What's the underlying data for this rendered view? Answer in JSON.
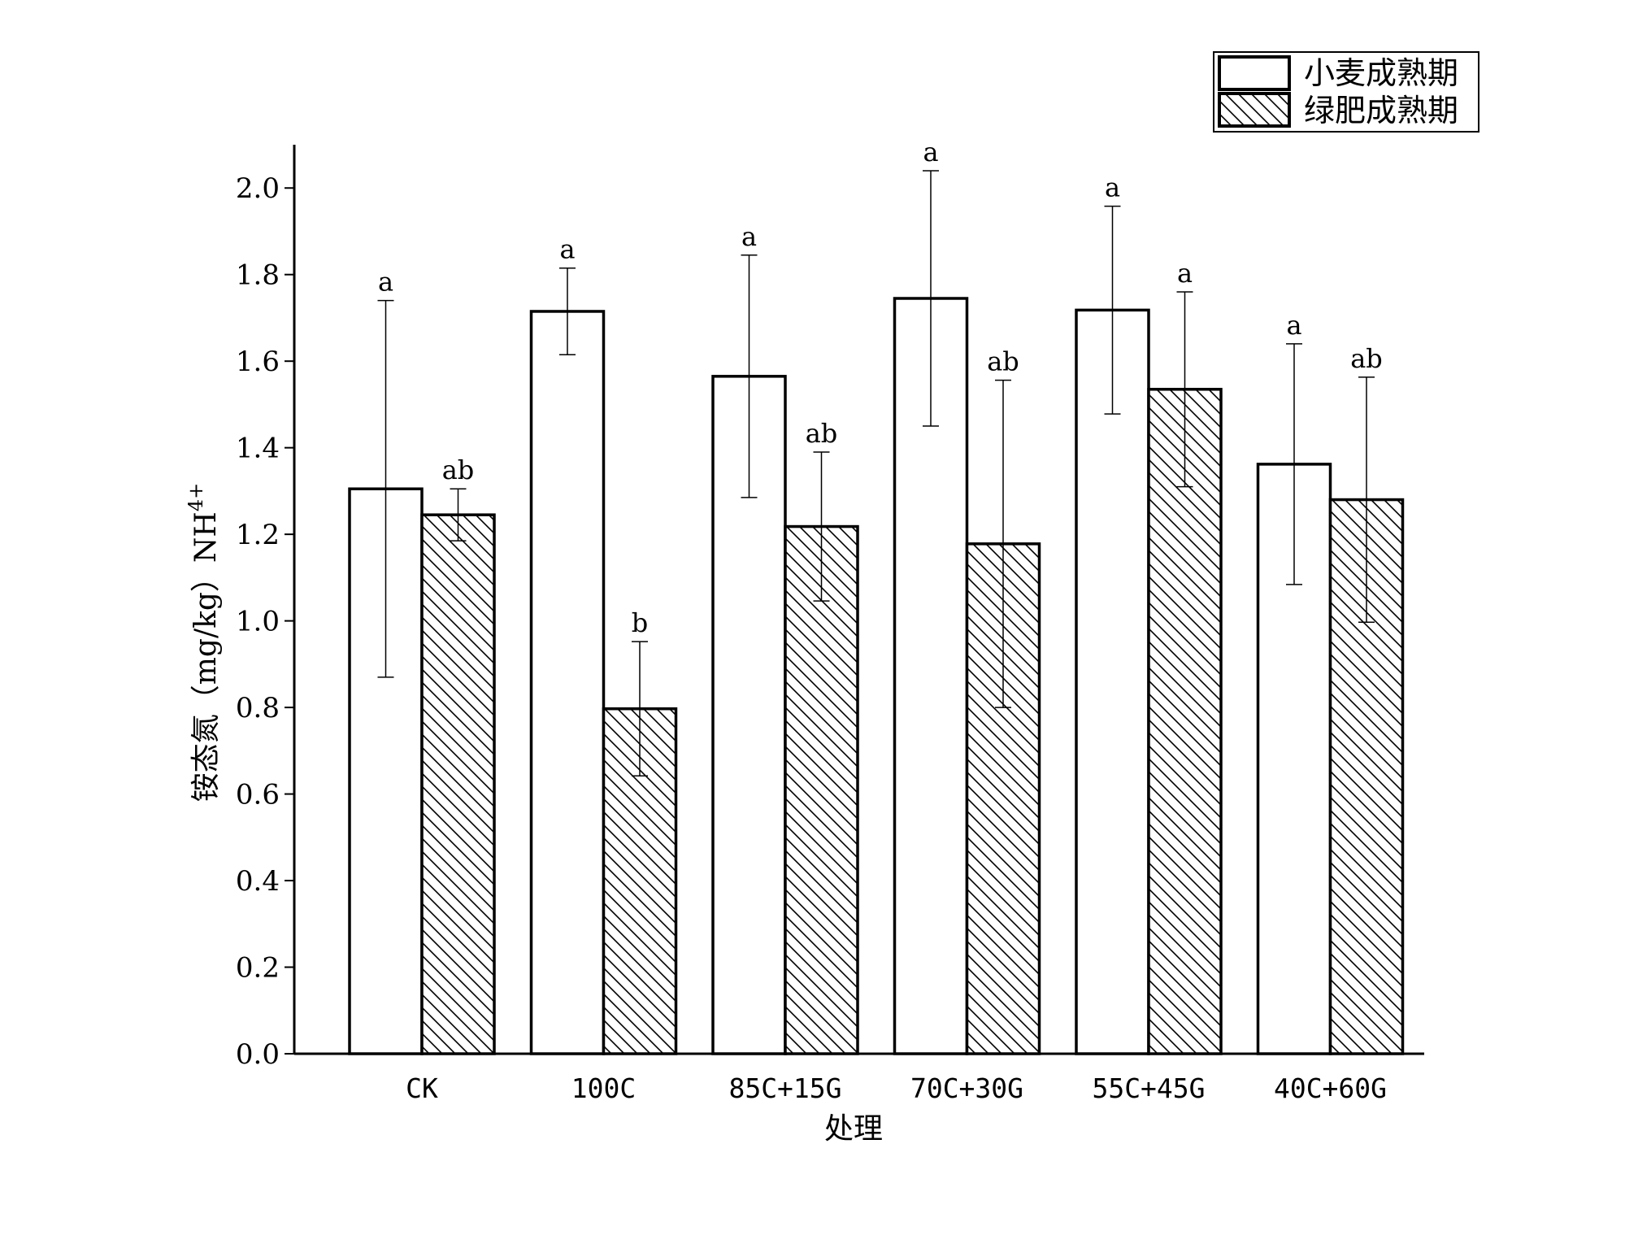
{
  "chart_data": {
    "type": "bar",
    "title": "",
    "xlabel": "处理",
    "ylabel": "铵态氮（mg/kg）NH",
    "ylabel_sup": "4+",
    "ylim": [
      0,
      2.1
    ],
    "yticks": [
      "0.0",
      "0.2",
      "0.4",
      "0.6",
      "0.8",
      "1.0",
      "1.2",
      "1.4",
      "1.6",
      "1.8",
      "2.0"
    ],
    "categories": [
      "CK",
      "100C",
      "85C+15G",
      "70C+30G",
      "55C+45G",
      "40C+60G"
    ],
    "legend_position": "top-right",
    "series": [
      {
        "name": "小麦成熟期",
        "fill": "plain",
        "values": [
          1.305,
          1.715,
          1.565,
          1.745,
          1.718,
          1.362
        ],
        "error": [
          0.435,
          0.1,
          0.28,
          0.295,
          0.24,
          0.278
        ],
        "significance": [
          "a",
          "a",
          "a",
          "a",
          "a",
          "a"
        ]
      },
      {
        "name": "绿肥成熟期",
        "fill": "hatched",
        "values": [
          1.245,
          0.797,
          1.218,
          1.178,
          1.535,
          1.28
        ],
        "error": [
          0.06,
          0.155,
          0.172,
          0.378,
          0.225,
          0.283
        ],
        "significance": [
          "ab",
          "b",
          "ab",
          "ab",
          "a",
          "ab"
        ]
      }
    ],
    "colors": {
      "bar_stroke": "#000000",
      "bar_fill": "#ffffff",
      "hatch": "#000000",
      "axis": "#000000"
    }
  }
}
